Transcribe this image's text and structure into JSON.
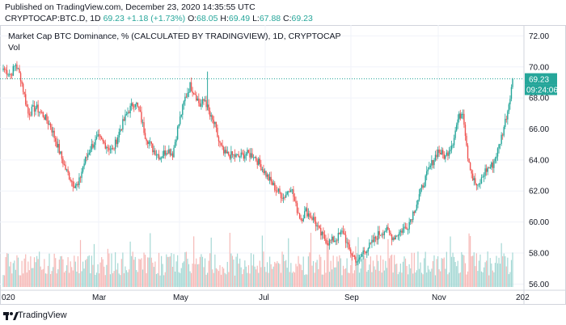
{
  "header": {
    "published_text": "Published on TradingView.com, December 23, 2020 14:35:55 UTC",
    "symbol": "CRYPTOCAP:BTC.D, 1D",
    "price": "69.23",
    "change": "+1.18 (+1.73%)",
    "o_label": "O:",
    "o_value": "68.05",
    "h_label": "H:",
    "h_value": "69.49",
    "l_label": "L:",
    "l_value": "67.88",
    "c_label": "C:",
    "c_value": "69.23"
  },
  "chart_data": {
    "type": "candlestick",
    "title": "Market Cap BTC Dominance, % (CALCULATED BY TRADINGVIEW), 1D, CRYPTOCAP",
    "volume_label": "Vol",
    "ylim": [
      55.6,
      72.7
    ],
    "y_ticks": [
      "72.00",
      "70.00",
      "68.00",
      "66.00",
      "64.00",
      "62.00",
      "60.00",
      "58.00",
      "56.00"
    ],
    "x_ticks": [
      "020",
      "Mar",
      "May",
      "Jul",
      "Sep",
      "Nov",
      "202"
    ],
    "last_price_label": "69.23",
    "countdown_label": "09:24:06",
    "last_price": 69.23,
    "up_color": "#26a69a",
    "down_color": "#ef5350",
    "keypoints": [
      {
        "x": 0,
        "y": 69.9
      },
      {
        "x": 6,
        "y": 69.5
      },
      {
        "x": 10,
        "y": 70.2
      },
      {
        "x": 14,
        "y": 69.3
      },
      {
        "x": 20,
        "y": 67.0
      },
      {
        "x": 26,
        "y": 67.4
      },
      {
        "x": 32,
        "y": 66.9
      },
      {
        "x": 38,
        "y": 66.2
      },
      {
        "x": 44,
        "y": 64.8
      },
      {
        "x": 50,
        "y": 63.4
      },
      {
        "x": 56,
        "y": 62.5
      },
      {
        "x": 60,
        "y": 62.3
      },
      {
        "x": 64,
        "y": 63.6
      },
      {
        "x": 70,
        "y": 64.8
      },
      {
        "x": 76,
        "y": 65.4
      },
      {
        "x": 82,
        "y": 65.0
      },
      {
        "x": 88,
        "y": 64.6
      },
      {
        "x": 94,
        "y": 66.0
      },
      {
        "x": 100,
        "y": 67.1
      },
      {
        "x": 106,
        "y": 67.8
      },
      {
        "x": 110,
        "y": 66.9
      },
      {
        "x": 114,
        "y": 65.6
      },
      {
        "x": 120,
        "y": 64.7
      },
      {
        "x": 126,
        "y": 64.2
      },
      {
        "x": 132,
        "y": 64.7
      },
      {
        "x": 136,
        "y": 64.4
      },
      {
        "x": 140,
        "y": 66.0
      },
      {
        "x": 146,
        "y": 68.0
      },
      {
        "x": 150,
        "y": 68.8
      },
      {
        "x": 154,
        "y": 68.3
      },
      {
        "x": 158,
        "y": 67.5
      },
      {
        "x": 162,
        "y": 67.9
      },
      {
        "x": 166,
        "y": 66.8
      },
      {
        "x": 170,
        "y": 66.2
      },
      {
        "x": 173,
        "y": 65.2
      },
      {
        "x": 177,
        "y": 64.4
      },
      {
        "x": 183,
        "y": 64.3
      },
      {
        "x": 189,
        "y": 64.2
      },
      {
        "x": 195,
        "y": 64.4
      },
      {
        "x": 201,
        "y": 64.3
      },
      {
        "x": 207,
        "y": 63.6
      },
      {
        "x": 213,
        "y": 62.8
      },
      {
        "x": 219,
        "y": 62.1
      },
      {
        "x": 225,
        "y": 61.6
      },
      {
        "x": 231,
        "y": 62.3
      },
      {
        "x": 235,
        "y": 61.0
      },
      {
        "x": 239,
        "y": 60.2
      },
      {
        "x": 243,
        "y": 60.7
      },
      {
        "x": 249,
        "y": 60.2
      },
      {
        "x": 255,
        "y": 59.2
      },
      {
        "x": 261,
        "y": 58.7
      },
      {
        "x": 267,
        "y": 58.9
      },
      {
        "x": 273,
        "y": 59.4
      },
      {
        "x": 277,
        "y": 58.3
      },
      {
        "x": 281,
        "y": 57.8
      },
      {
        "x": 285,
        "y": 57.4
      },
      {
        "x": 289,
        "y": 58.1
      },
      {
        "x": 295,
        "y": 58.5
      },
      {
        "x": 301,
        "y": 59.2
      },
      {
        "x": 307,
        "y": 59.5
      },
      {
        "x": 313,
        "y": 59.0
      },
      {
        "x": 319,
        "y": 59.4
      },
      {
        "x": 325,
        "y": 59.8
      },
      {
        "x": 331,
        "y": 61.0
      },
      {
        "x": 337,
        "y": 62.4
      },
      {
        "x": 343,
        "y": 63.6
      },
      {
        "x": 349,
        "y": 64.6
      },
      {
        "x": 355,
        "y": 64.2
      },
      {
        "x": 361,
        "y": 65.2
      },
      {
        "x": 365,
        "y": 66.6
      },
      {
        "x": 369,
        "y": 67.2
      },
      {
        "x": 373,
        "y": 64.3
      },
      {
        "x": 377,
        "y": 62.8
      },
      {
        "x": 381,
        "y": 62.2
      },
      {
        "x": 387,
        "y": 63.3
      },
      {
        "x": 393,
        "y": 63.7
      },
      {
        "x": 397,
        "y": 64.6
      },
      {
        "x": 401,
        "y": 65.8
      },
      {
        "x": 405,
        "y": 67.2
      },
      {
        "x": 409,
        "y": 69.23
      }
    ]
  },
  "footer": {
    "brand": "TradingView"
  }
}
